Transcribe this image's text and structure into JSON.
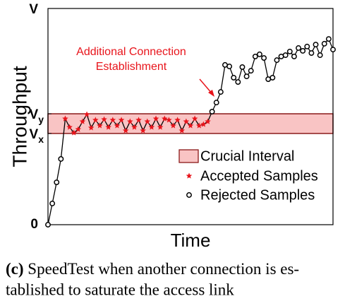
{
  "chart_data": {
    "type": "line",
    "ylabel": "Throughput",
    "xlabel": "Time",
    "annotation": [
      "Additional Connection",
      "Establishment"
    ],
    "xlim": [
      0,
      66
    ],
    "ylim": [
      0,
      100
    ],
    "yticks": [
      0,
      {
        "value": 42.2,
        "label": "V",
        "sub": "x"
      },
      {
        "value": 51.3,
        "label": "V",
        "sub": "y"
      },
      {
        "value": 100,
        "label": "V"
      }
    ],
    "band_name": "Crucial Interval",
    "band_color": "#f9c4c4",
    "band_edge": "#8b1a1a",
    "series": [
      {
        "name": "Accepted Samples",
        "color": "#e8141b",
        "marker": "star",
        "x": [
          4,
          5,
          6,
          7,
          8,
          9,
          10,
          11,
          12,
          13,
          14,
          15,
          16,
          17,
          18,
          19,
          20,
          21,
          22,
          23,
          24,
          25,
          26,
          27,
          28,
          29,
          30,
          31,
          32,
          33,
          34,
          35,
          36,
          37
        ],
        "values": [
          49,
          45.1,
          42.5,
          44.1,
          47.7,
          51,
          44.8,
          48.4,
          45.8,
          48.7,
          45.1,
          48.4,
          45.8,
          48.4,
          43.5,
          47.7,
          45.1,
          48.4,
          43.5,
          47.7,
          45.1,
          49,
          45.1,
          49,
          48.4,
          45.8,
          48.4,
          43.5,
          47.7,
          45.8,
          49,
          45.8,
          46.4,
          47.7
        ]
      },
      {
        "name": "Rejected Samples",
        "color": "#000000",
        "marker": "circle",
        "x": [
          0,
          1,
          2,
          3,
          38,
          39,
          40,
          41,
          42,
          43,
          44,
          45,
          46,
          47,
          48,
          49,
          50,
          51,
          52,
          53,
          54,
          55,
          56,
          57,
          58,
          59,
          60,
          61,
          62,
          63,
          64,
          65,
          66
        ],
        "values": [
          0,
          9.8,
          19.6,
          30.4,
          52.3,
          56.5,
          61.4,
          73.9,
          73.2,
          68,
          66,
          72.9,
          68.6,
          71.2,
          77.8,
          78.8,
          77.1,
          67.3,
          68,
          76.1,
          77.8,
          78.4,
          80.1,
          77.8,
          81.7,
          80.4,
          82.4,
          79.4,
          83.3,
          78.4,
          83.7,
          85.9,
          81
        ]
      }
    ]
  },
  "caption": {
    "label": "(c)",
    "lines": [
      "SpeedTest when another connection is es-",
      "tablished to saturate the access link"
    ]
  }
}
